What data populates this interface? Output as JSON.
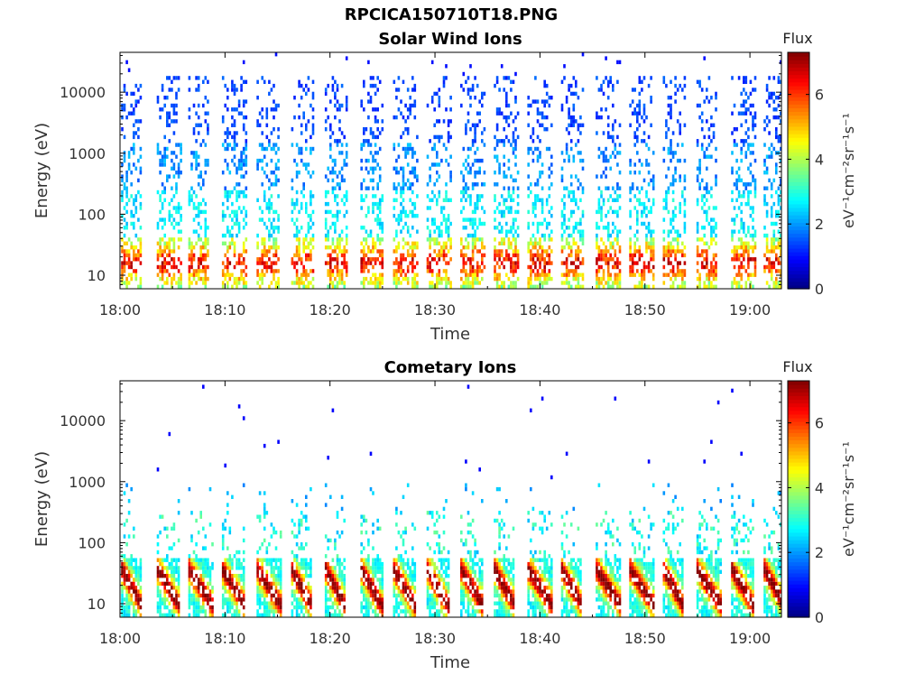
{
  "figure_title": "RPCICA150710T18.PNG",
  "colors": {
    "colormap": "jet",
    "background": "#ffffff",
    "axis": "#000000"
  },
  "chart_data": [
    {
      "type": "heatmap",
      "title": "Solar Wind Ions",
      "xlabel": "Time",
      "ylabel": "Energy (eV)",
      "x_tick_labels": [
        "18:00",
        "18:10",
        "18:20",
        "18:30",
        "18:40",
        "18:50",
        "19:00"
      ],
      "x_range": [
        "18:00",
        "19:03"
      ],
      "y_scale": "log",
      "y_tick_labels": [
        "10",
        "100",
        "1000",
        "10000"
      ],
      "y_range": [
        6,
        45000
      ],
      "colorbar": {
        "label": "Flux",
        "unit": "eV⁻¹cm⁻²sr⁻¹s⁻¹",
        "ticks": [
          "0",
          "2",
          "4",
          "6"
        ],
        "range": [
          0,
          7.3
        ]
      },
      "grid": false,
      "scan_starts_min": [
        0.1,
        3.5,
        6.5,
        9.7,
        13.0,
        16.3,
        19.5,
        22.9,
        26.0,
        29.2,
        32.4,
        35.6,
        38.8,
        42.0,
        45.3,
        48.5,
        51.7,
        54.9,
        58.2,
        61.3
      ]
    },
    {
      "type": "heatmap",
      "title": "Cometary Ions",
      "xlabel": "Time",
      "ylabel": "Energy (eV)",
      "x_tick_labels": [
        "18:00",
        "18:10",
        "18:20",
        "18:30",
        "18:40",
        "18:50",
        "19:00"
      ],
      "x_range": [
        "18:00",
        "19:03"
      ],
      "y_scale": "log",
      "y_tick_labels": [
        "10",
        "100",
        "1000",
        "10000"
      ],
      "y_range": [
        6,
        45000
      ],
      "colorbar": {
        "label": "Flux",
        "unit": "eV⁻¹cm⁻²sr⁻¹s⁻¹",
        "ticks": [
          "0",
          "2",
          "4",
          "6"
        ],
        "range": [
          0,
          7.3
        ]
      },
      "grid": false,
      "scan_starts_min": [
        0.1,
        3.5,
        6.5,
        9.7,
        13.0,
        16.3,
        19.5,
        22.9,
        26.0,
        29.2,
        32.4,
        35.6,
        38.8,
        42.0,
        45.3,
        48.5,
        51.7,
        54.9,
        58.2,
        61.3
      ]
    }
  ]
}
